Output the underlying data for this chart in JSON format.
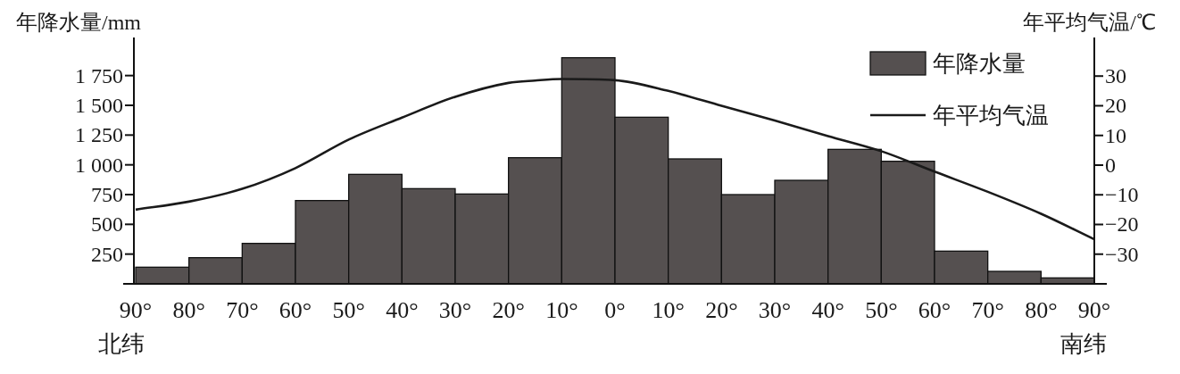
{
  "chart_data": {
    "type": "histogram",
    "ylabel": "年降水量/mm",
    "y2label": "年平均气温/℃",
    "bins": [
      90,
      80,
      70,
      60,
      50,
      40,
      30,
      20,
      10,
      0,
      -10,
      -20,
      -30,
      -40,
      -50,
      -60,
      -70,
      -80,
      -90
    ],
    "series": [
      {
        "name": "年降水量",
        "color": "#555050",
        "values": [
          140,
          220,
          340,
          700,
          920,
          800,
          755,
          1060,
          1900,
          1400,
          1050,
          750,
          870,
          1130,
          1030,
          275,
          105,
          50
        ]
      },
      {
        "name": "年平均气温",
        "type": "line",
        "axis": "y2",
        "color": "#1a1a1a",
        "x": [
          90,
          80,
          70,
          60,
          50,
          40,
          30,
          20,
          15,
          10,
          0,
          -10,
          -20,
          -30,
          -40,
          -50,
          -60,
          -70,
          -80,
          -90
        ],
        "values": [
          -15,
          -12.3,
          -8,
          -1,
          8.6,
          16,
          23,
          27.7,
          28.5,
          29,
          28.6,
          25,
          20,
          15,
          9.8,
          4.7,
          -2.2,
          -9,
          -16.4,
          -25
        ]
      }
    ],
    "xlim": [
      90,
      -90
    ],
    "xticks": [
      {
        "value": 90,
        "label": "90°"
      },
      {
        "value": 80,
        "label": "80°"
      },
      {
        "value": 70,
        "label": "70°"
      },
      {
        "value": 60,
        "label": "60°"
      },
      {
        "value": 50,
        "label": "50°"
      },
      {
        "value": 40,
        "label": "40°"
      },
      {
        "value": 30,
        "label": "30°"
      },
      {
        "value": 20,
        "label": "20°"
      },
      {
        "value": 10,
        "label": "10°"
      },
      {
        "value": 0,
        "label": "0°"
      },
      {
        "value": -10,
        "label": "10°"
      },
      {
        "value": -20,
        "label": "20°"
      },
      {
        "value": -30,
        "label": "30°"
      },
      {
        "value": -40,
        "label": "40°"
      },
      {
        "value": -50,
        "label": "50°"
      },
      {
        "value": -60,
        "label": "60°"
      },
      {
        "value": -70,
        "label": "70°"
      },
      {
        "value": -80,
        "label": "80°"
      },
      {
        "value": -90,
        "label": "90°"
      }
    ],
    "ylim": [
      0,
      2070
    ],
    "yticks": [
      250,
      500,
      750,
      {
        "value": 1000,
        "label": "1 000"
      },
      {
        "value": 1250,
        "label": "1 250"
      },
      {
        "value": 1500,
        "label": "1 500"
      },
      {
        "value": 1750,
        "label": "1 750"
      }
    ],
    "y2lim": [
      -40,
      43
    ],
    "y2ticks": [
      {
        "value": -30,
        "label": "−30"
      },
      {
        "value": -20,
        "label": "−20"
      },
      {
        "value": -10,
        "label": "−10"
      },
      0,
      10,
      20,
      30
    ],
    "annotations": [
      "北纬",
      "南纬"
    ],
    "legend": "top right",
    "grid": false,
    "line_style": "solid",
    "marker": "none"
  }
}
